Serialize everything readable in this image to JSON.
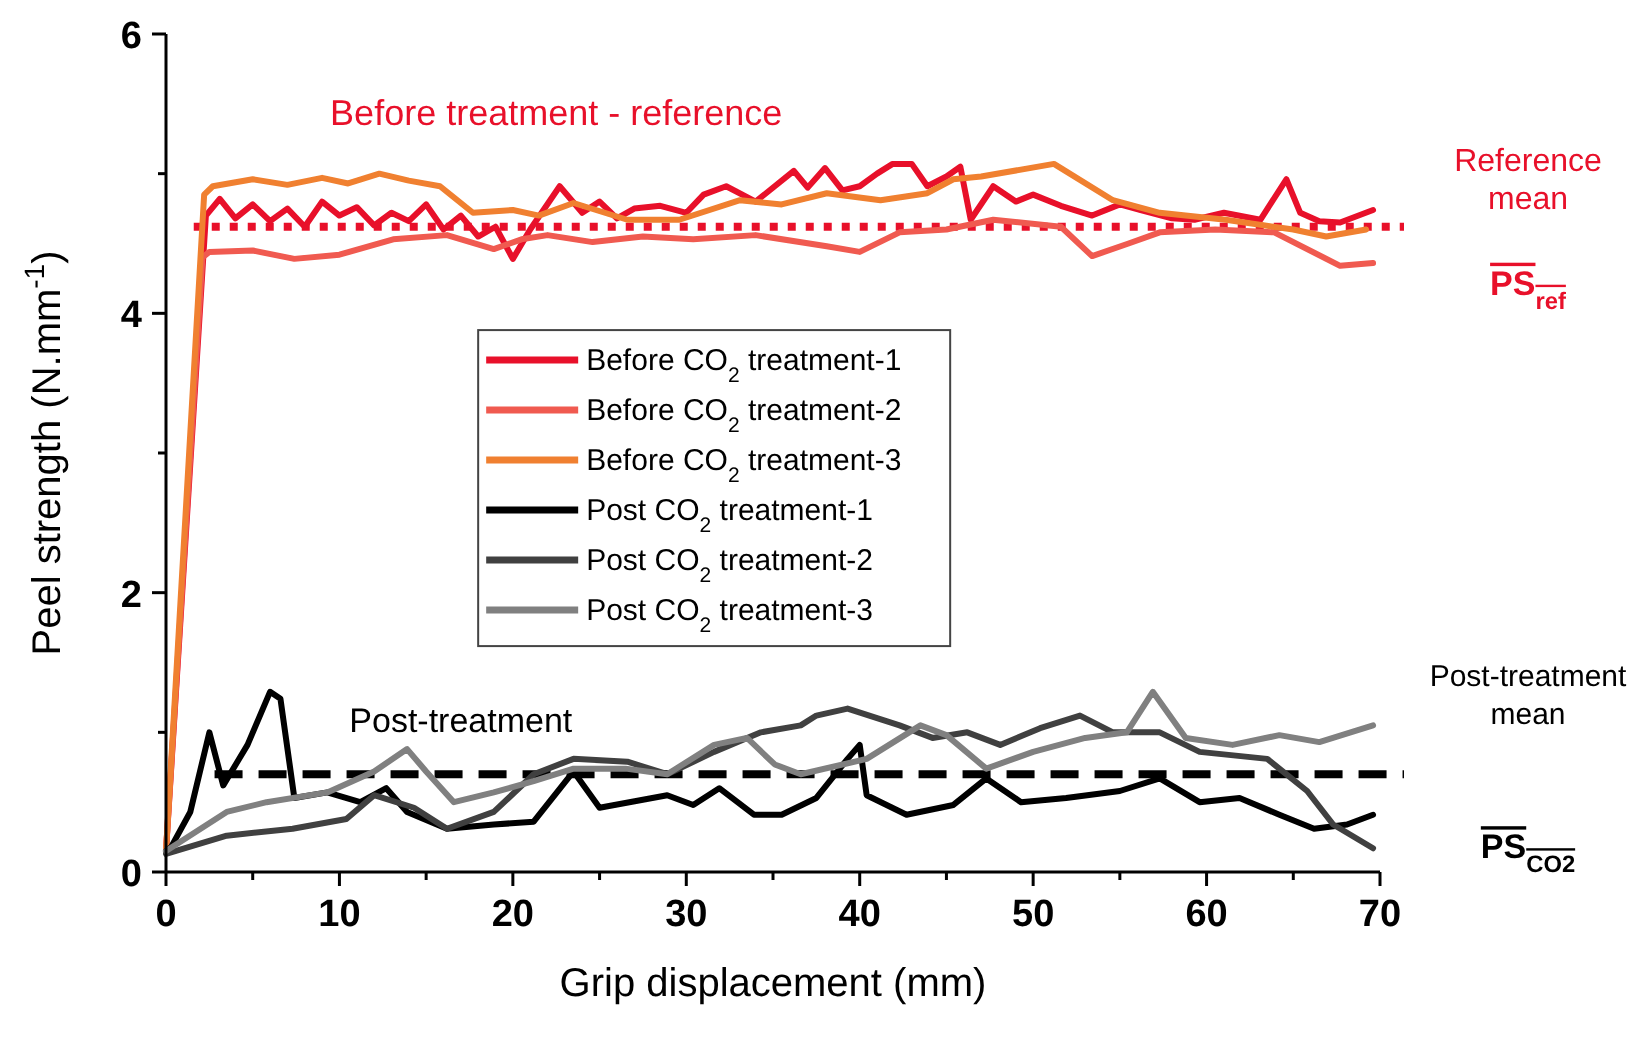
{
  "chart_data": {
    "type": "line",
    "xlabel": "Grip displacement (mm)",
    "ylabel": "Peel strength (N.mm$^{-1}$)",
    "xlim": [
      0,
      70
    ],
    "ylim": [
      0,
      6
    ],
    "xticks": [
      0,
      {
        "value": 5,
        "label": null
      },
      10,
      {
        "value": 15,
        "label": null
      },
      20,
      {
        "value": 25,
        "label": null
      },
      30,
      {
        "value": 35,
        "label": null
      },
      40,
      {
        "value": 45,
        "label": null
      },
      50,
      {
        "value": 55,
        "label": null
      },
      60,
      {
        "value": 65,
        "label": null
      },
      70
    ],
    "yticks": [
      0,
      {
        "value": 1,
        "label": null
      },
      2,
      {
        "value": 3,
        "label": null
      },
      4,
      {
        "value": 5,
        "label": null
      },
      6
    ],
    "grid": false,
    "legend": "center",
    "line_style": "solid",
    "marker": "none",
    "series": [
      {
        "name": "Before CO$_{2}$ treatment-1",
        "color": "#e8102a",
        "x": [
          0,
          2.3,
          3.1,
          4,
          5,
          6,
          7,
          8,
          9,
          10,
          11,
          12,
          13,
          14,
          15,
          16,
          17,
          18,
          19,
          20,
          21,
          22.7,
          24,
          25,
          26,
          27,
          28.5,
          30,
          31,
          32.3,
          34,
          36.2,
          37,
          38,
          39,
          40,
          41,
          41.9,
          43,
          43.9,
          45,
          45.8,
          46.4,
          47.7,
          49,
          50,
          51.6,
          53.4,
          55,
          56.2,
          58,
          59.3,
          61,
          63.1,
          64.6,
          65.4,
          66.5,
          67.7,
          69.6
        ],
        "values": [
          0.15,
          4.7,
          4.82,
          4.68,
          4.78,
          4.66,
          4.75,
          4.62,
          4.8,
          4.7,
          4.76,
          4.63,
          4.72,
          4.66,
          4.78,
          4.6,
          4.7,
          4.55,
          4.62,
          4.39,
          4.6,
          4.91,
          4.72,
          4.8,
          4.68,
          4.75,
          4.77,
          4.72,
          4.85,
          4.91,
          4.8,
          5.02,
          4.9,
          5.04,
          4.88,
          4.91,
          5.0,
          5.07,
          5.07,
          4.91,
          4.98,
          5.05,
          4.67,
          4.91,
          4.8,
          4.85,
          4.77,
          4.7,
          4.78,
          4.74,
          4.68,
          4.67,
          4.72,
          4.67,
          4.96,
          4.72,
          4.66,
          4.65,
          4.74
        ]
      },
      {
        "name": "Before CO$_{2}$ treatment-2",
        "color": "#f05a50",
        "x": [
          0,
          2.1,
          2.5,
          5,
          7.4,
          10,
          13.1,
          16.2,
          18.9,
          20.5,
          22,
          24.6,
          27.5,
          30.4,
          34,
          38.1,
          40,
          42.3,
          45,
          47.7,
          51.6,
          53.4,
          55.5,
          57.3,
          60.5,
          63.9,
          67.7,
          69.6
        ],
        "values": [
          0.15,
          4.4,
          4.44,
          4.45,
          4.39,
          4.42,
          4.53,
          4.56,
          4.46,
          4.53,
          4.56,
          4.51,
          4.55,
          4.53,
          4.56,
          4.48,
          4.44,
          4.58,
          4.6,
          4.67,
          4.62,
          4.41,
          4.5,
          4.58,
          4.6,
          4.58,
          4.34,
          4.36
        ]
      },
      {
        "name": "Before CO$_{2}$ treatment-3",
        "color": "#f08030",
        "x": [
          0,
          2.2,
          2.7,
          5,
          7,
          9,
          10.5,
          12.3,
          14,
          15.8,
          17.7,
          20,
          21.5,
          23.5,
          26.6,
          29.6,
          33.1,
          35.5,
          38.1,
          41.2,
          43.9,
          45.4,
          47,
          51.2,
          54.6,
          57.3,
          61.1,
          65,
          66.9,
          69.2
        ],
        "values": [
          0.15,
          4.85,
          4.91,
          4.96,
          4.92,
          4.97,
          4.93,
          5.0,
          4.95,
          4.91,
          4.72,
          4.74,
          4.7,
          4.79,
          4.67,
          4.67,
          4.81,
          4.78,
          4.86,
          4.81,
          4.86,
          4.96,
          4.98,
          5.07,
          4.81,
          4.72,
          4.67,
          4.6,
          4.55,
          4.6
        ]
      },
      {
        "name": "Post CO$_{2}$ treatment-1",
        "color": "#000000",
        "x": [
          0,
          0.3,
          1.4,
          2.5,
          3.3,
          4.7,
          6.0,
          6.6,
          7.4,
          9.3,
          11.2,
          12.7,
          13.9,
          16.2,
          18.9,
          21.2,
          23.5,
          25,
          28.9,
          30.4,
          31.9,
          33.9,
          35.5,
          37.5,
          39.3,
          40,
          40.4,
          42.7,
          45.4,
          47.3,
          49.3,
          51.9,
          55,
          57.3,
          59.6,
          61.9,
          64.2,
          66.2,
          68.1,
          69.6
        ],
        "values": [
          0.15,
          0.18,
          0.43,
          1.0,
          0.62,
          0.91,
          1.29,
          1.24,
          0.53,
          0.57,
          0.5,
          0.6,
          0.43,
          0.31,
          0.34,
          0.36,
          0.72,
          0.46,
          0.55,
          0.48,
          0.6,
          0.41,
          0.41,
          0.53,
          0.81,
          0.91,
          0.55,
          0.41,
          0.48,
          0.67,
          0.5,
          0.53,
          0.58,
          0.67,
          0.5,
          0.53,
          0.41,
          0.31,
          0.34,
          0.41
        ]
      },
      {
        "name": "Post CO$_{2}$ treatment-2",
        "color": "#404040",
        "x": [
          0,
          3.5,
          7.3,
          10.4,
          12,
          14.3,
          16.2,
          18.9,
          21.2,
          23.5,
          26.6,
          28.9,
          31.6,
          34.3,
          36.6,
          37.5,
          39.3,
          42.3,
          44.2,
          46.2,
          48.1,
          50.4,
          52.7,
          54.6,
          57.3,
          59.6,
          63.5,
          65.8,
          67.3,
          69.6
        ],
        "values": [
          0.13,
          0.26,
          0.31,
          0.38,
          0.55,
          0.46,
          0.31,
          0.43,
          0.7,
          0.81,
          0.79,
          0.7,
          0.86,
          1.0,
          1.05,
          1.12,
          1.17,
          1.05,
          0.96,
          1.0,
          0.91,
          1.03,
          1.12,
          1.0,
          1.0,
          0.86,
          0.81,
          0.58,
          0.34,
          0.17
        ]
      },
      {
        "name": "Post CO$_{2}$ treatment-3",
        "color": "#808080",
        "x": [
          0,
          3.5,
          5.8,
          9.3,
          12,
          13.9,
          15,
          16.6,
          18.9,
          21.2,
          23.5,
          26.5,
          28.9,
          31.6,
          33.5,
          35.1,
          36.6,
          40.4,
          43.5,
          45,
          47.3,
          50,
          53,
          55.4,
          56.9,
          58.8,
          61.5,
          64.2,
          66.5,
          69.6
        ],
        "values": [
          0.15,
          0.43,
          0.5,
          0.57,
          0.72,
          0.88,
          0.72,
          0.5,
          0.57,
          0.65,
          0.74,
          0.74,
          0.7,
          0.91,
          0.96,
          0.77,
          0.7,
          0.81,
          1.05,
          0.98,
          0.74,
          0.86,
          0.96,
          1.0,
          1.29,
          0.96,
          0.91,
          0.98,
          0.93,
          1.05
        ]
      }
    ],
    "ref_lines": [
      {
        "axis": "y",
        "value": 4.62,
        "label": "Reference mean",
        "color": "#e8102a",
        "line_style": "dotted"
      },
      {
        "axis": "y",
        "value": 0.7,
        "label": "Post-treatment mean",
        "color": "#000000",
        "line_style": "dashed"
      }
    ],
    "annotations": [
      "Before treatment - reference",
      "Post-treatment",
      "PS$_{ref}$",
      "PS$_{CO2}$"
    ]
  }
}
